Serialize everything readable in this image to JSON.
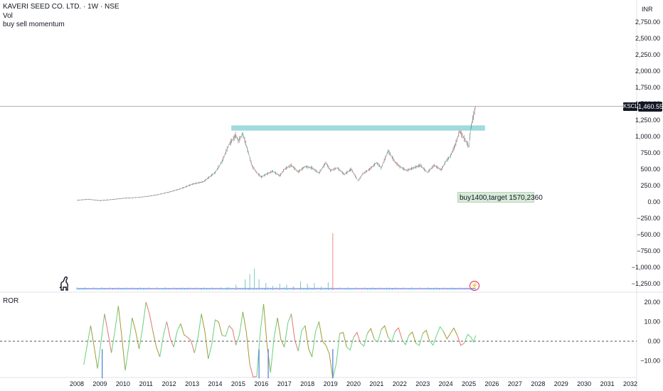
{
  "legend": {
    "symbol_line": "KAVERI SEED CO. LTD. · 1W · NSE",
    "vol_label": "Vol",
    "indicator_label": "buy sell momentum"
  },
  "pane2_label": "ROR",
  "currency": "INR",
  "price_tag": {
    "symbol": "KSCL",
    "value": "1,460.55"
  },
  "annotation": "buy1400,target 1570,2360",
  "icons": {
    "logo": "dino-icon",
    "event": "flash-icon"
  },
  "colors": {
    "up": "#26a69a",
    "down": "#ef5350",
    "zone": "#8fd3d6",
    "volume_line": "#2962ff",
    "ror_green": "#66d17a",
    "ror_olive": "#a09a30",
    "ror_red": "#e57373"
  },
  "chart_data": [
    {
      "type": "line",
      "title": "",
      "x_ticks": [
        "2008",
        "2009",
        "2010",
        "2011",
        "2012",
        "2013",
        "2014",
        "2015",
        "2016",
        "2017",
        "2018",
        "2019",
        "2020",
        "2021",
        "2022",
        "2023",
        "2024",
        "2025",
        "2026",
        "2027",
        "2028",
        "2029",
        "2030",
        "2031",
        "2032"
      ],
      "y_ticks": [
        "2,750.00",
        "2,500.00",
        "2,250.00",
        "2,000.00",
        "1,750.00",
        "1,500.00",
        "1,250.00",
        "1,000.00",
        "750.00",
        "500.00",
        "250.00",
        "0.00",
        "−250.00",
        "−500.00",
        "−750.00",
        "−1,000.00",
        "−1,250.00"
      ],
      "y_tick_values": [
        2750,
        2500,
        2250,
        2000,
        1750,
        1500,
        1250,
        1000,
        750,
        500,
        250,
        0,
        -250,
        -500,
        -750,
        -1000,
        -1250
      ],
      "ylim": [
        -1350,
        2900
      ],
      "xlim": [
        2007.7,
        2032.3
      ],
      "series": [
        {
          "x": [
            2008.0,
            2008.5,
            2009.0,
            2009.5,
            2010.0,
            2010.5,
            2011.0,
            2011.5,
            2012.0,
            2012.5,
            2013.0,
            2013.5,
            2014.0,
            2014.3,
            2014.6,
            2014.9,
            2015.0,
            2015.2,
            2015.4,
            2015.6,
            2015.8,
            2016.0,
            2016.2,
            2016.5,
            2016.8,
            2017.0,
            2017.3,
            2017.6,
            2017.9,
            2018.2,
            2018.5,
            2018.8,
            2019.0,
            2019.3,
            2019.6,
            2019.9,
            2020.2,
            2020.4,
            2020.7,
            2021.0,
            2021.2,
            2021.5,
            2021.8,
            2022.0,
            2022.3,
            2022.6,
            2022.9,
            2023.2,
            2023.5,
            2023.8,
            2024.0,
            2024.2,
            2024.4,
            2024.6,
            2024.8,
            2025.0,
            2025.1,
            2025.2,
            2025.3
          ],
          "values": [
            25,
            40,
            20,
            35,
            55,
            65,
            80,
            110,
            150,
            200,
            270,
            310,
            450,
            620,
            880,
            1020,
            930,
            1040,
            800,
            550,
            450,
            380,
            420,
            470,
            400,
            500,
            560,
            460,
            540,
            520,
            440,
            600,
            480,
            520,
            420,
            500,
            320,
            430,
            500,
            600,
            520,
            780,
            610,
            540,
            480,
            520,
            560,
            450,
            560,
            490,
            620,
            700,
            860,
            1080,
            970,
            850,
            1160,
            1320,
            1460
          ]
        }
      ],
      "zone": {
        "from_x": 2014.7,
        "to_x": 2025.7,
        "y_low": 1090,
        "y_high": 1170
      },
      "current_price_line": 1460.55
    },
    {
      "type": "bar",
      "title": "",
      "series": [
        {
          "name": "",
          "x": [
            2014.5,
            2014.9,
            2015.3,
            2015.5,
            2015.7,
            2015.9,
            2016.2,
            2016.5,
            2016.8,
            2017.1,
            2017.4,
            2017.7,
            2018.0,
            2018.3,
            2018.6,
            2018.9,
            2019.1
          ],
          "values": [
            0.8,
            1.5,
            3,
            4.5,
            6,
            3,
            2,
            1.2,
            1.8,
            1.5,
            1,
            2.5,
            1.8,
            2,
            1,
            2.2,
            16
          ]
        }
      ],
      "note_values_relative": true
    },
    {
      "type": "line",
      "title": "ROR",
      "y_ticks": [
        "20.00",
        "10.00",
        "0.00",
        "−10.00"
      ],
      "y_tick_values": [
        20,
        10,
        0,
        -10
      ],
      "ylim": [
        -19,
        24.5
      ],
      "zero_dashed": true,
      "series": [
        {
          "x": [
            2008.3,
            2008.6,
            2008.9,
            2009.2,
            2009.5,
            2009.8,
            2010.1,
            2010.4,
            2010.7,
            2011.0,
            2011.3,
            2011.6,
            2011.9,
            2012.2,
            2012.5,
            2012.8,
            2013.1,
            2013.4,
            2013.7,
            2014.0,
            2014.3,
            2014.6,
            2014.9,
            2015.2,
            2015.5,
            2015.8,
            2016.1,
            2016.4,
            2016.7,
            2017.0,
            2017.3,
            2017.6,
            2017.9,
            2018.2,
            2018.5,
            2018.8,
            2019.1,
            2019.4,
            2019.7,
            2020.0,
            2020.3,
            2020.6,
            2020.9,
            2021.2,
            2021.5,
            2021.8,
            2022.1,
            2022.4,
            2022.7,
            2023.0,
            2023.3,
            2023.6,
            2023.9,
            2024.2,
            2024.5,
            2024.8,
            2025.1,
            2025.3
          ],
          "values": [
            -12,
            8,
            -14,
            14,
            -6,
            18,
            -15,
            12,
            -4,
            20,
            5,
            -8,
            10,
            -3,
            9,
            2,
            -6,
            14,
            -9,
            11,
            3,
            8,
            -2,
            15,
            -12,
            -18,
            19,
            -16,
            12,
            -3,
            14,
            -5,
            8,
            -8,
            10,
            -2,
            -19,
            4,
            -3,
            2,
            -1,
            4,
            1,
            6,
            2,
            5,
            1,
            3,
            -1,
            4,
            0,
            3,
            5,
            4,
            3,
            -1,
            2,
            3
          ]
        }
      ]
    }
  ]
}
